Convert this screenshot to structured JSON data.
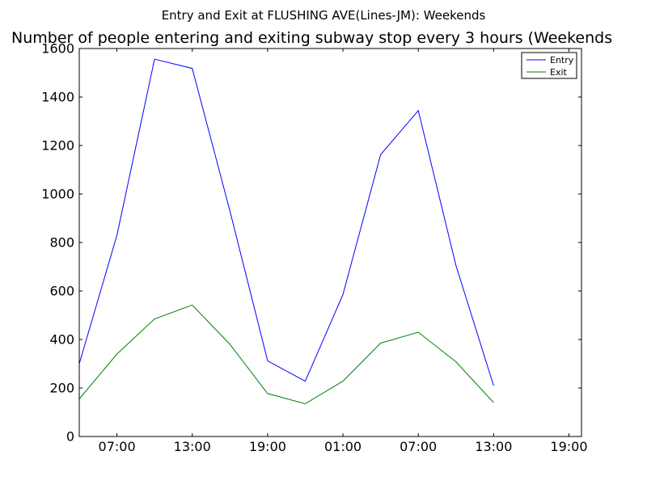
{
  "chart_data": {
    "type": "line",
    "suptitle": "Entry and Exit at FLUSHING AVE(Lines-JM): Weekends",
    "title": "Number of people entering and exiting subway stop every 3 hours (Weekends",
    "xlabel": "",
    "ylabel": "",
    "x_hours": [
      4,
      7,
      10,
      13,
      16,
      19,
      22,
      25,
      28,
      31,
      34,
      37,
      40,
      43
    ],
    "xlim": [
      4,
      44
    ],
    "ylim": [
      0,
      1600
    ],
    "xticks": [
      {
        "hour": 7,
        "label": "07:00"
      },
      {
        "hour": 13,
        "label": "13:00"
      },
      {
        "hour": 19,
        "label": "19:00"
      },
      {
        "hour": 25,
        "label": "01:00"
      },
      {
        "hour": 31,
        "label": "07:00"
      },
      {
        "hour": 37,
        "label": "13:00"
      },
      {
        "hour": 43,
        "label": "19:00"
      }
    ],
    "yticks": [
      0,
      200,
      400,
      600,
      800,
      1000,
      1200,
      1400,
      1600
    ],
    "legend_position": "top-right",
    "grid": false,
    "series": [
      {
        "name": "Entry",
        "color": "#0000ff",
        "points": [
          {
            "h": 4,
            "v": 300
          },
          {
            "h": 7,
            "v": 830
          },
          {
            "h": 10,
            "v": 1556
          },
          {
            "h": 13,
            "v": 1518
          },
          {
            "h": 16,
            "v": 930
          },
          {
            "h": 19,
            "v": 312
          },
          {
            "h": 22,
            "v": 228
          },
          {
            "h": 25,
            "v": 585
          },
          {
            "h": 28,
            "v": 1162
          },
          {
            "h": 31,
            "v": 1344
          },
          {
            "h": 34,
            "v": 705
          },
          {
            "h": 37,
            "v": 210
          }
        ]
      },
      {
        "name": "Exit",
        "color": "#008000",
        "points": [
          {
            "h": 4,
            "v": 155
          },
          {
            "h": 7,
            "v": 340
          },
          {
            "h": 10,
            "v": 485
          },
          {
            "h": 13,
            "v": 542
          },
          {
            "h": 16,
            "v": 380
          },
          {
            "h": 19,
            "v": 177
          },
          {
            "h": 22,
            "v": 135
          },
          {
            "h": 25,
            "v": 228
          },
          {
            "h": 28,
            "v": 385
          },
          {
            "h": 31,
            "v": 430
          },
          {
            "h": 34,
            "v": 308
          },
          {
            "h": 37,
            "v": 140
          }
        ]
      }
    ]
  }
}
